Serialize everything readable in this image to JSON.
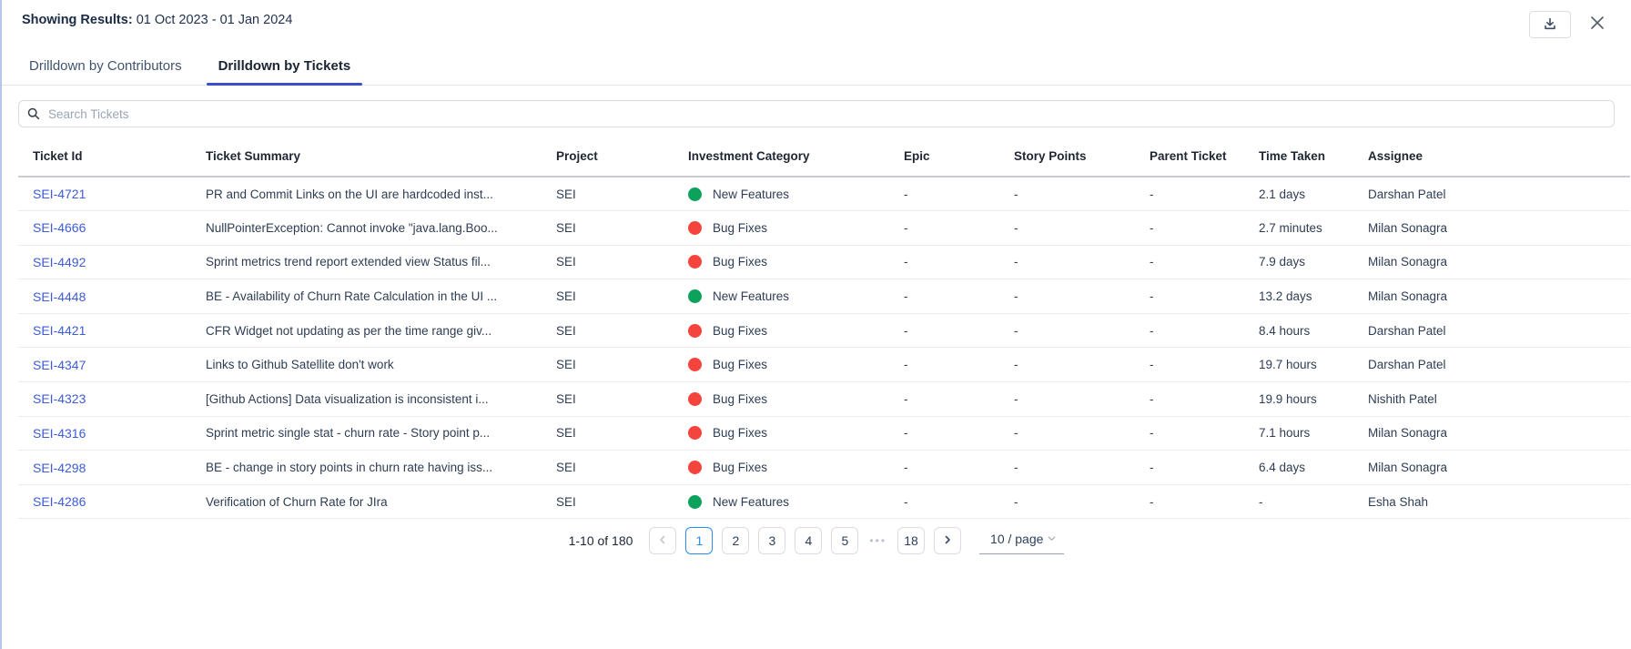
{
  "top_bar": {
    "showing_label": "Showing Results:",
    "date_range": "01 Oct 2023 - 01 Jan 2024"
  },
  "icons": {
    "download": "download-icon",
    "close": "✕",
    "search": "🔍",
    "chevron_left": "‹",
    "chevron_right": "›",
    "chevron_down": "⌄"
  },
  "tabs": [
    {
      "label": "Drilldown by Contributors",
      "active": false
    },
    {
      "label": "Drilldown by Tickets",
      "active": true
    }
  ],
  "search": {
    "placeholder": "Search Tickets",
    "value": ""
  },
  "category_colors": {
    "New Features": "#0da25c",
    "Bug Fixes": "#f4443d"
  },
  "table": {
    "columns": [
      "Ticket Id",
      "Ticket Summary",
      "Project",
      "Investment Category",
      "Epic",
      "Story Points",
      "Parent Ticket",
      "Time Taken",
      "Assignee"
    ],
    "rows": [
      {
        "ticket_id": "SEI-4721",
        "summary": "PR and Commit Links on the UI are hardcoded inst...",
        "project": "SEI",
        "category": "New Features",
        "epic": "-",
        "story_points": "-",
        "parent_ticket": "-",
        "time_taken": "2.1 days",
        "assignee": "Darshan Patel"
      },
      {
        "ticket_id": "SEI-4666",
        "summary": "NullPointerException: Cannot invoke \"java.lang.Boo...",
        "project": "SEI",
        "category": "Bug Fixes",
        "epic": "-",
        "story_points": "-",
        "parent_ticket": "-",
        "time_taken": "2.7 minutes",
        "assignee": "Milan Sonagra"
      },
      {
        "ticket_id": "SEI-4492",
        "summary": "Sprint metrics trend report extended view Status fil...",
        "project": "SEI",
        "category": "Bug Fixes",
        "epic": "-",
        "story_points": "-",
        "parent_ticket": "-",
        "time_taken": "7.9 days",
        "assignee": "Milan Sonagra"
      },
      {
        "ticket_id": "SEI-4448",
        "summary": "BE - Availability of Churn Rate Calculation in the UI ...",
        "project": "SEI",
        "category": "New Features",
        "epic": "-",
        "story_points": "-",
        "parent_ticket": "-",
        "time_taken": "13.2 days",
        "assignee": "Milan Sonagra"
      },
      {
        "ticket_id": "SEI-4421",
        "summary": "CFR Widget not updating as per the time range giv...",
        "project": "SEI",
        "category": "Bug Fixes",
        "epic": "-",
        "story_points": "-",
        "parent_ticket": "-",
        "time_taken": "8.4 hours",
        "assignee": "Darshan Patel"
      },
      {
        "ticket_id": "SEI-4347",
        "summary": "Links to Github Satellite don't work",
        "project": "SEI",
        "category": "Bug Fixes",
        "epic": "-",
        "story_points": "-",
        "parent_ticket": "-",
        "time_taken": "19.7 hours",
        "assignee": "Darshan Patel"
      },
      {
        "ticket_id": "SEI-4323",
        "summary": "[Github Actions] Data visualization is inconsistent i...",
        "project": "SEI",
        "category": "Bug Fixes",
        "epic": "-",
        "story_points": "-",
        "parent_ticket": "-",
        "time_taken": "19.9 hours",
        "assignee": "Nishith Patel"
      },
      {
        "ticket_id": "SEI-4316",
        "summary": "Sprint metric single stat - churn rate - Story point p...",
        "project": "SEI",
        "category": "Bug Fixes",
        "epic": "-",
        "story_points": "-",
        "parent_ticket": "-",
        "time_taken": "7.1 hours",
        "assignee": "Milan Sonagra"
      },
      {
        "ticket_id": "SEI-4298",
        "summary": "BE - change in story points in churn rate having iss...",
        "project": "SEI",
        "category": "Bug Fixes",
        "epic": "-",
        "story_points": "-",
        "parent_ticket": "-",
        "time_taken": "6.4 days",
        "assignee": "Milan Sonagra"
      },
      {
        "ticket_id": "SEI-4286",
        "summary": "Verification of Churn Rate for JIra",
        "project": "SEI",
        "category": "New Features",
        "epic": "-",
        "story_points": "-",
        "parent_ticket": "-",
        "time_taken": "-",
        "assignee": "Esha Shah"
      }
    ]
  },
  "pagination": {
    "total_label": "1-10 of 180",
    "pages": [
      "1",
      "2",
      "3",
      "4",
      "5"
    ],
    "active_page": "1",
    "ellipsis": "•••",
    "jump_page": "18",
    "page_size_label": "10 / page"
  }
}
